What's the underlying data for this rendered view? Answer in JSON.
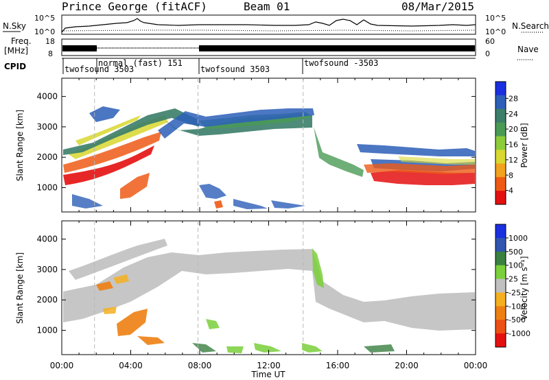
{
  "header": {
    "station": "Prince George (fitACF)",
    "beam": "Beam 01",
    "date": "08/Mar/2015"
  },
  "status_panels": {
    "nsky_label": "N.Sky",
    "nsearch_label": "N.Search",
    "freq_label_1": "Freq.",
    "freq_label_2": "[MHz]",
    "nave_label": "Nave",
    "cpid_label": "CPID",
    "noise_ticks_left": [
      "10^5",
      "10^0"
    ],
    "noise_ticks_right": [
      "10^5",
      "10^0"
    ],
    "freq_ticks": [
      "18",
      "8"
    ],
    "nave_ticks": [
      "60",
      "0"
    ],
    "cpid_segments": [
      {
        "label": "twofsound 3503",
        "start_hour": 0
      },
      {
        "label": "normal (fast) 151",
        "start_hour": 1.9
      },
      {
        "label": "twofsound 3503",
        "start_hour": 7.9
      },
      {
        "label": "twofsound -3503",
        "start_hour": 14.0
      }
    ]
  },
  "colors": {
    "power_scale": [
      "#1a2fe0",
      "#2c5fb8",
      "#3b7e6a",
      "#4a9a56",
      "#8ccc3a",
      "#d8d830",
      "#f2a21f",
      "#ee5a16",
      "#e41010"
    ],
    "velocity_scale": [
      "#1a2fe0",
      "#2f55b0",
      "#3a8040",
      "#7ad03a",
      "#c0c0c0",
      "#f5b020",
      "#ee8012",
      "#ec5014",
      "#e41010"
    ]
  },
  "chart_data": [
    {
      "type": "heatmap",
      "panel": "power",
      "title": "Power",
      "xlabel": "",
      "ylabel": "Slant Range [km]",
      "xlim": [
        0,
        24
      ],
      "ylim": [
        200,
        4600
      ],
      "y_ticks": [
        "1000",
        "2000",
        "3000",
        "4000"
      ],
      "x_ticks": [
        "00:00",
        "04:00",
        "08:00",
        "12:00",
        "16:00",
        "20:00",
        "00:00"
      ],
      "colorbar": {
        "label": "Power [dB]",
        "ticks": [
          "28",
          "24",
          "20",
          "16",
          "12",
          "8",
          "4"
        ],
        "range": [
          0,
          30
        ]
      }
    },
    {
      "type": "heatmap",
      "panel": "velocity",
      "title": "Velocity",
      "xlabel": "Time UT",
      "ylabel": "Slant Range [km]",
      "xlim": [
        0,
        24
      ],
      "ylim": [
        200,
        4600
      ],
      "y_ticks": [
        "1000",
        "2000",
        "3000",
        "4000"
      ],
      "x_ticks": [
        "00:00",
        "04:00",
        "08:00",
        "12:00",
        "16:00",
        "20:00",
        "00:00"
      ],
      "colorbar": {
        "label": "Velocity [m s⁻¹]",
        "ticks": [
          "1000",
          "500",
          "100",
          "25",
          "-25",
          "-100",
          "-500",
          "-1000"
        ],
        "range": [
          -1000,
          1000
        ]
      }
    }
  ]
}
